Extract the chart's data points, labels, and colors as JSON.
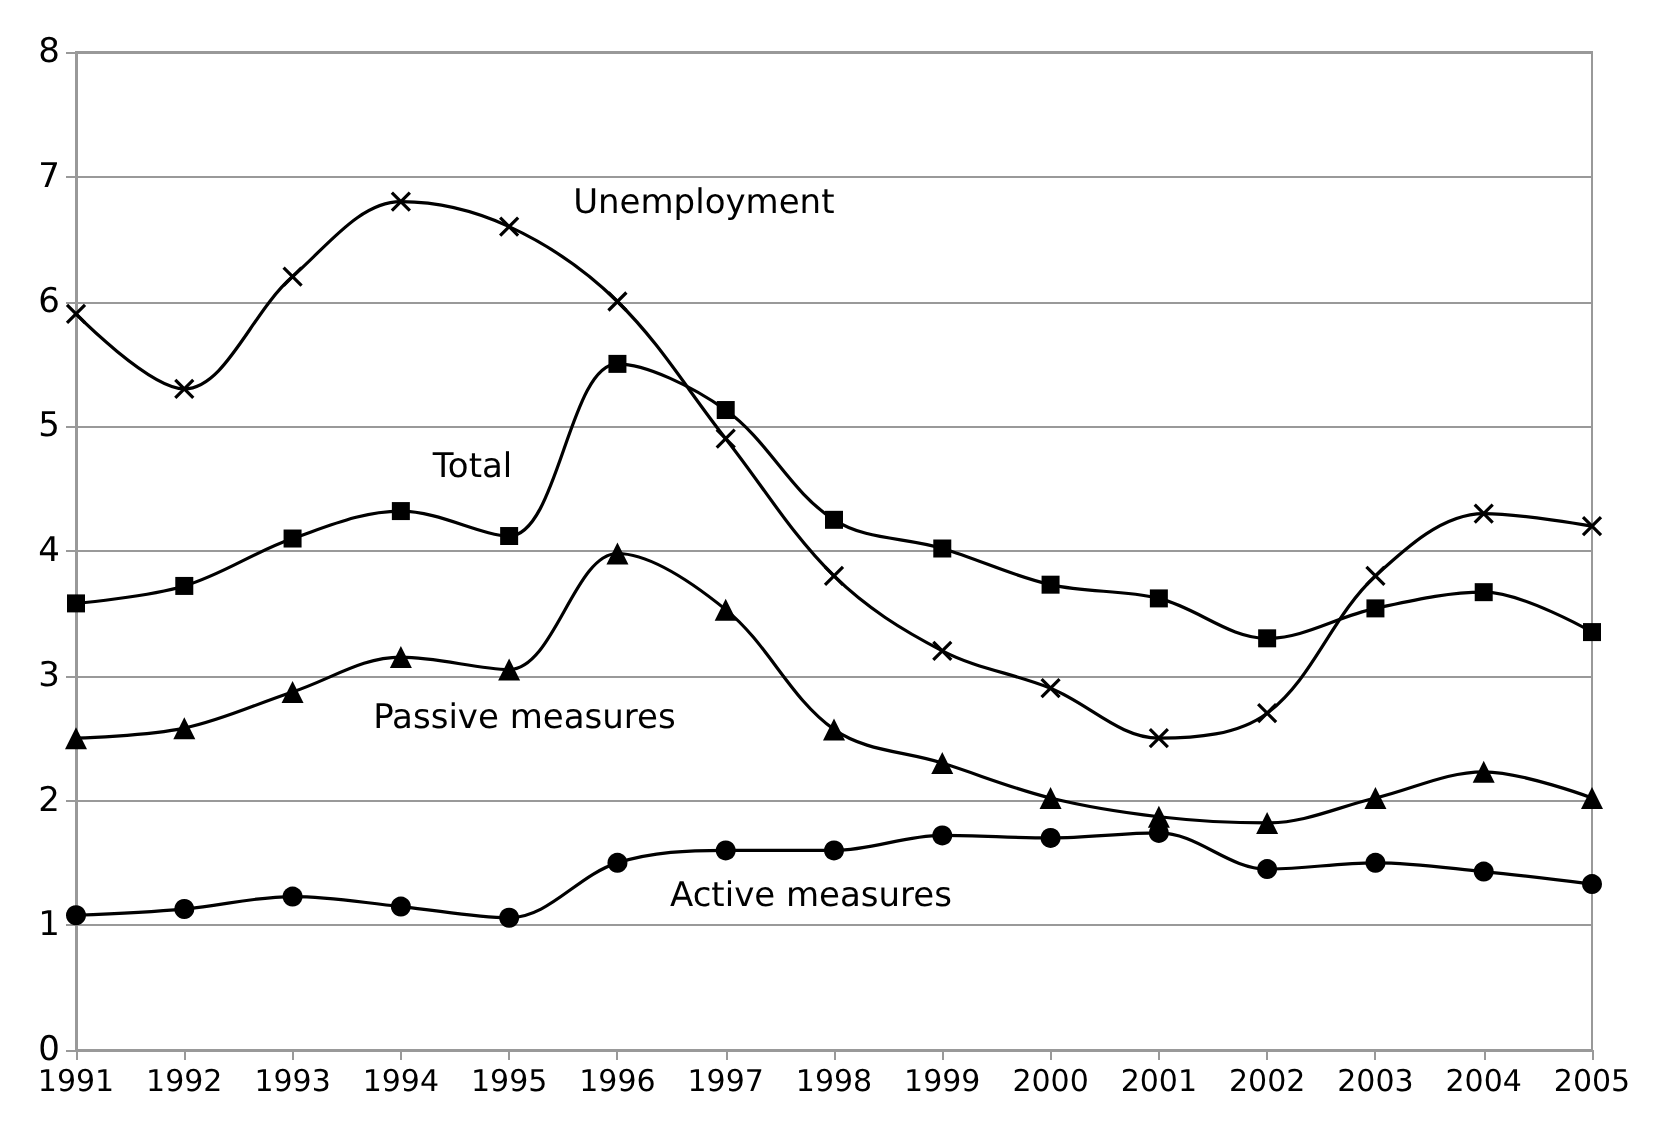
{
  "chart_data": {
    "type": "line",
    "categories": [
      "1991",
      "1992",
      "1993",
      "1994",
      "1995",
      "1996",
      "1997",
      "1998",
      "1999",
      "2000",
      "2001",
      "2002",
      "2003",
      "2004",
      "2005"
    ],
    "ylim": [
      0,
      8
    ],
    "yticks": [
      0,
      1,
      2,
      3,
      4,
      5,
      6,
      7,
      8
    ],
    "grid": "y",
    "line_style": "solid",
    "series": [
      {
        "name": "Unemployment",
        "color": "#000000",
        "marker": "cross",
        "values": [
          5.9,
          5.3,
          6.2,
          6.8,
          6.6,
          6.0,
          4.9,
          3.8,
          3.2,
          2.9,
          2.5,
          2.7,
          3.8,
          4.3,
          4.2
        ]
      },
      {
        "name": "Total",
        "color": "#000000",
        "marker": "square",
        "values": [
          3.58,
          3.72,
          4.1,
          4.32,
          4.12,
          5.5,
          5.13,
          4.25,
          4.02,
          3.73,
          3.62,
          3.3,
          3.54,
          3.67,
          3.35
        ]
      },
      {
        "name": "Passive measures",
        "color": "#000000",
        "marker": "triangle",
        "values": [
          2.5,
          2.58,
          2.87,
          3.15,
          3.05,
          3.98,
          3.53,
          2.57,
          2.3,
          2.02,
          1.87,
          1.82,
          2.02,
          2.23,
          2.02
        ]
      },
      {
        "name": "Active measures",
        "color": "#000000",
        "marker": "circle",
        "values": [
          1.08,
          1.13,
          1.23,
          1.15,
          1.06,
          1.5,
          1.6,
          1.6,
          1.72,
          1.7,
          1.74,
          1.45,
          1.5,
          1.43,
          1.33
        ]
      }
    ]
  }
}
